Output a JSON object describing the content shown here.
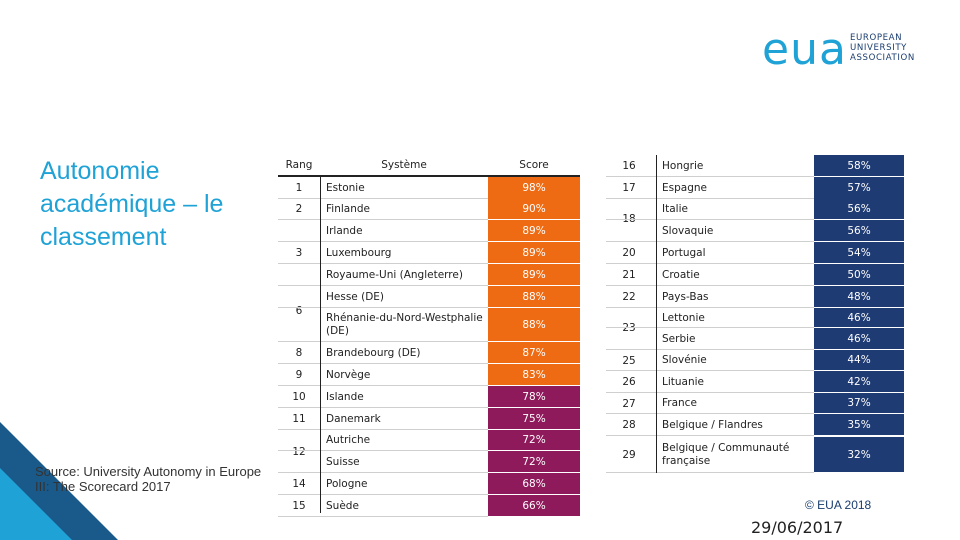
{
  "logo": {
    "mark": "eua",
    "lines": [
      "EUROPEAN",
      "UNIVERSITY",
      "ASSOCIATION"
    ]
  },
  "title": "Autonomie académique – le classement",
  "source": "Source: University Autonomy in Europe III: The Scorecard 2017",
  "copyright": "© EUA 2018",
  "date": "29/06/2017",
  "colors": {
    "orange": "#ee6b14",
    "purple": "#8e1a5c",
    "navy": "#1f3b73",
    "accent": "#1fa2d6"
  },
  "left_table": {
    "headers": {
      "rank": "Rang",
      "system": "Système",
      "score": "Score"
    },
    "rows": [
      {
        "rank": "1",
        "system": "Estonie",
        "score": "98%"
      },
      {
        "rank": "2",
        "system": "Finlande",
        "score": "90%"
      },
      {
        "rank": "3",
        "system": "Irlande",
        "score": "89%"
      },
      {
        "rank": "",
        "system": "Luxembourg",
        "score": "89%"
      },
      {
        "rank": "",
        "system": "Royaume-Uni (Angleterre)",
        "score": "89%"
      },
      {
        "rank": "6",
        "system": "Hesse (DE)",
        "score": "88%"
      },
      {
        "rank": "",
        "system": "Rhénanie-du-Nord-Westphalie (DE)",
        "score": "88%"
      },
      {
        "rank": "8",
        "system": "Brandebourg (DE)",
        "score": "87%"
      },
      {
        "rank": "9",
        "system": "Norvège",
        "score": "83%"
      },
      {
        "rank": "10",
        "system": "Islande",
        "score": "78%"
      },
      {
        "rank": "11",
        "system": "Danemark",
        "score": "75%"
      },
      {
        "rank": "12",
        "system": "Autriche",
        "score": "72%"
      },
      {
        "rank": "",
        "system": "Suisse",
        "score": "72%"
      },
      {
        "rank": "14",
        "system": "Pologne",
        "score": "68%"
      },
      {
        "rank": "15",
        "system": "Suède",
        "score": "66%"
      }
    ]
  },
  "right_table": {
    "rows": [
      {
        "rank": "16",
        "system": "Hongrie",
        "score": "58%"
      },
      {
        "rank": "17",
        "system": "Espagne",
        "score": "57%"
      },
      {
        "rank": "18",
        "system": "Italie",
        "score": "56%"
      },
      {
        "rank": "",
        "system": "Slovaquie",
        "score": "56%"
      },
      {
        "rank": "20",
        "system": "Portugal",
        "score": "54%"
      },
      {
        "rank": "21",
        "system": "Croatie",
        "score": "50%"
      },
      {
        "rank": "22",
        "system": "Pays-Bas",
        "score": "48%"
      },
      {
        "rank": "23",
        "system": "Lettonie",
        "score": "46%"
      },
      {
        "rank": "",
        "system": "Serbie",
        "score": "46%"
      },
      {
        "rank": "25",
        "system": "Slovénie",
        "score": "44%"
      },
      {
        "rank": "26",
        "system": "Lituanie",
        "score": "42%"
      },
      {
        "rank": "27",
        "system": "France",
        "score": "37%"
      },
      {
        "rank": "28",
        "system": "Belgique / Flandres",
        "score": "35%"
      },
      {
        "rank": "29",
        "system": "Belgique / Communauté française",
        "score": "32%"
      }
    ]
  }
}
